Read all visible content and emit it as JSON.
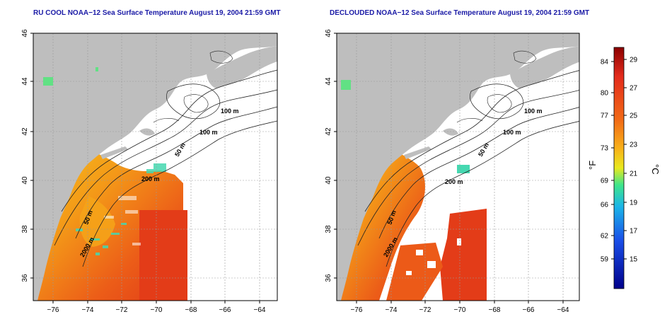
{
  "maps": [
    {
      "title": "RU COOL NOAA−12 Sea Surface Temperature August 19, 2004 21:59 GMT",
      "contour_labels": [
        "100 m",
        "100 m",
        "50 m",
        "200 m",
        "50 m",
        "2000 m"
      ]
    },
    {
      "title": "DECLOUDED NOAA−12 Sea Surface Temperature August 19, 2004 21:59 GMT",
      "contour_labels": [
        "100 m",
        "100 m",
        "50 m",
        "200 m",
        "50 m",
        "2000 m"
      ]
    }
  ],
  "axes": {
    "x_ticks": [
      "−76",
      "−74",
      "−72",
      "−70",
      "−68",
      "−66",
      "−64"
    ],
    "y_ticks": [
      "36",
      "38",
      "40",
      "42",
      "44",
      "46"
    ]
  },
  "colorbar": {
    "fahrenheit_label": "°F",
    "celsius_label": "°C",
    "fahrenheit_ticks": [
      "84",
      "80",
      "77",
      "73",
      "69",
      "66",
      "62",
      "59"
    ],
    "celsius_ticks": [
      "29",
      "27",
      "25",
      "23",
      "21",
      "19",
      "17",
      "15"
    ],
    "colors": [
      "#8b0000",
      "#e32b1c",
      "#f26a16",
      "#f8b21a",
      "#e9e91e",
      "#3fe68a",
      "#1bb5e8",
      "#1a4fe8",
      "#00008b"
    ]
  },
  "colors": {
    "land": "#bebebe",
    "water_nodata": "#ffffff",
    "title": "#1a1aa6"
  }
}
